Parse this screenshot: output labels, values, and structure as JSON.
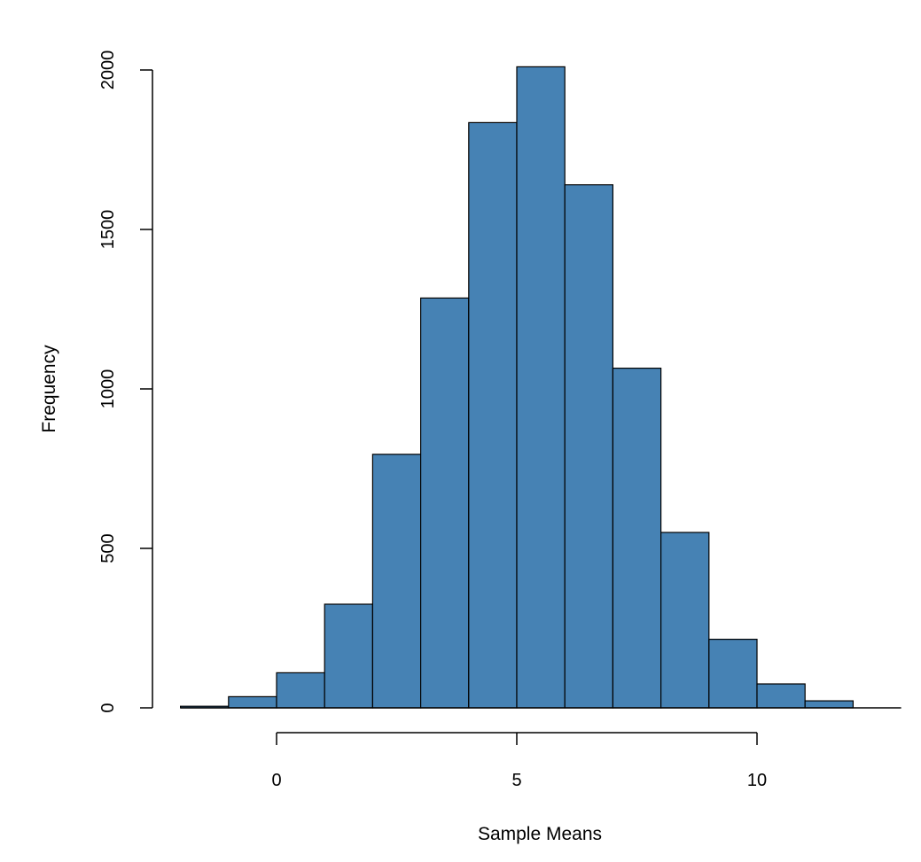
{
  "chart_data": {
    "type": "bar",
    "title": "",
    "xlabel": "Sample Means",
    "ylabel": "Frequency",
    "bin_edges": [
      -2,
      -1,
      0,
      1,
      2,
      3,
      4,
      5,
      6,
      7,
      8,
      9,
      10,
      11,
      12
    ],
    "values": [
      5,
      35,
      110,
      325,
      795,
      1285,
      1835,
      2010,
      1640,
      1065,
      550,
      215,
      75,
      22
    ],
    "xlim": [
      -2,
      13
    ],
    "ylim": [
      0,
      2000
    ],
    "x_ticks": [
      0,
      5,
      10
    ],
    "x_tick_labels": [
      "0",
      "5",
      "10"
    ],
    "y_ticks": [
      0,
      500,
      1000,
      1500,
      2000
    ],
    "y_tick_labels": [
      "0",
      "500",
      "1000",
      "1500",
      "2000"
    ],
    "bar_color": "#4682b4",
    "edge_color": "#000000",
    "grid": false
  }
}
